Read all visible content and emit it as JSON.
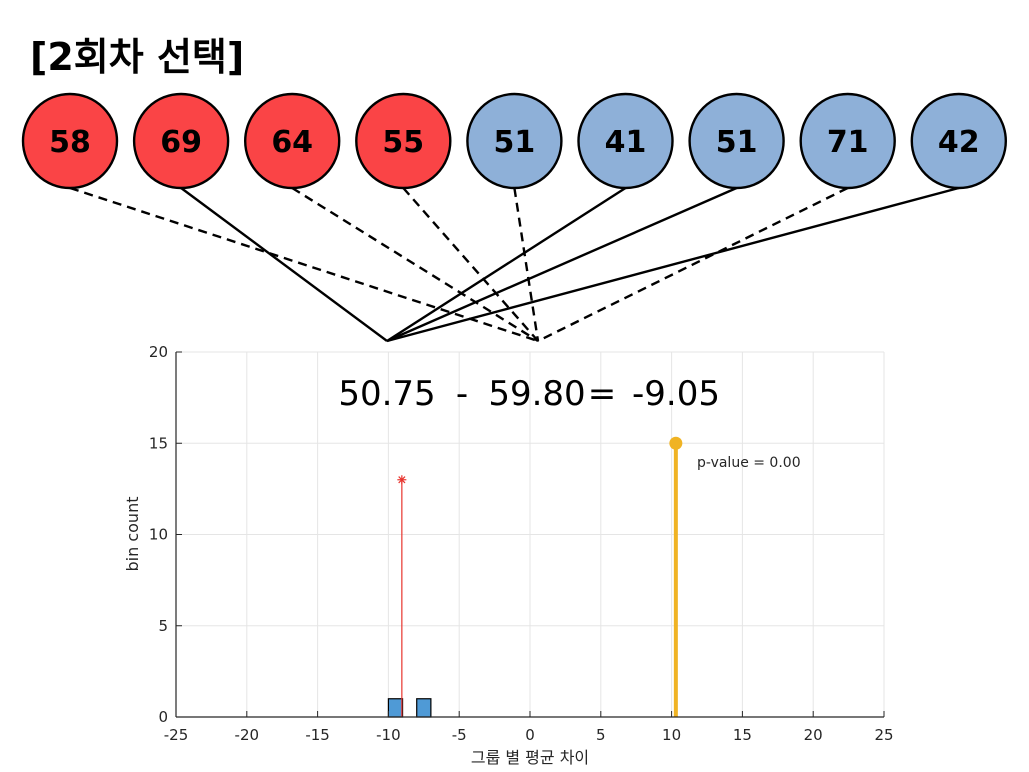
{
  "title": "[2회차 선택]",
  "balls": [
    {
      "value": "58",
      "group": "red",
      "line": "dashed"
    },
    {
      "value": "69",
      "group": "red",
      "line": "solid"
    },
    {
      "value": "64",
      "group": "red",
      "line": "dashed"
    },
    {
      "value": "55",
      "group": "red",
      "line": "dashed"
    },
    {
      "value": "51",
      "group": "blue",
      "line": "dashed"
    },
    {
      "value": "41",
      "group": "blue",
      "line": "solid"
    },
    {
      "value": "51",
      "group": "blue",
      "line": "solid"
    },
    {
      "value": "71",
      "group": "blue",
      "line": "dashed"
    },
    {
      "value": "42",
      "group": "blue",
      "line": "solid"
    }
  ],
  "colors": {
    "red_ball": "#fa4446",
    "blue_ball": "#8eb0d8",
    "histogram_bar": "#4f9ad6",
    "observed_line": "#f0b323",
    "current_marker": "#e8342e",
    "grid": "#e5e5e5"
  },
  "equation": {
    "mean_a": "50.75",
    "minus": "-",
    "mean_b": "59.80",
    "equals": "=",
    "difference": "-9.05"
  },
  "chart_data": {
    "type": "bar",
    "xlabel": "그룹 별 평균 차이",
    "ylabel": "bin count",
    "xlim": [
      -25,
      25
    ],
    "ylim": [
      0,
      20
    ],
    "x_ticks": [
      "-25",
      "-20",
      "-15",
      "-10",
      "-5",
      "0",
      "5",
      "10",
      "15",
      "20",
      "25"
    ],
    "y_ticks": [
      "0",
      "5",
      "10",
      "15",
      "20"
    ],
    "grid": true,
    "histogram_bins": [
      {
        "x_start": -10,
        "x_end": -9,
        "count": 1
      },
      {
        "x_start": -8,
        "x_end": -7,
        "count": 1
      }
    ],
    "current_difference": {
      "x": -9.05,
      "y": 13
    },
    "observed_difference": {
      "x": 10.3,
      "y": 15
    },
    "pvalue_label": "p-value = 0.00"
  }
}
